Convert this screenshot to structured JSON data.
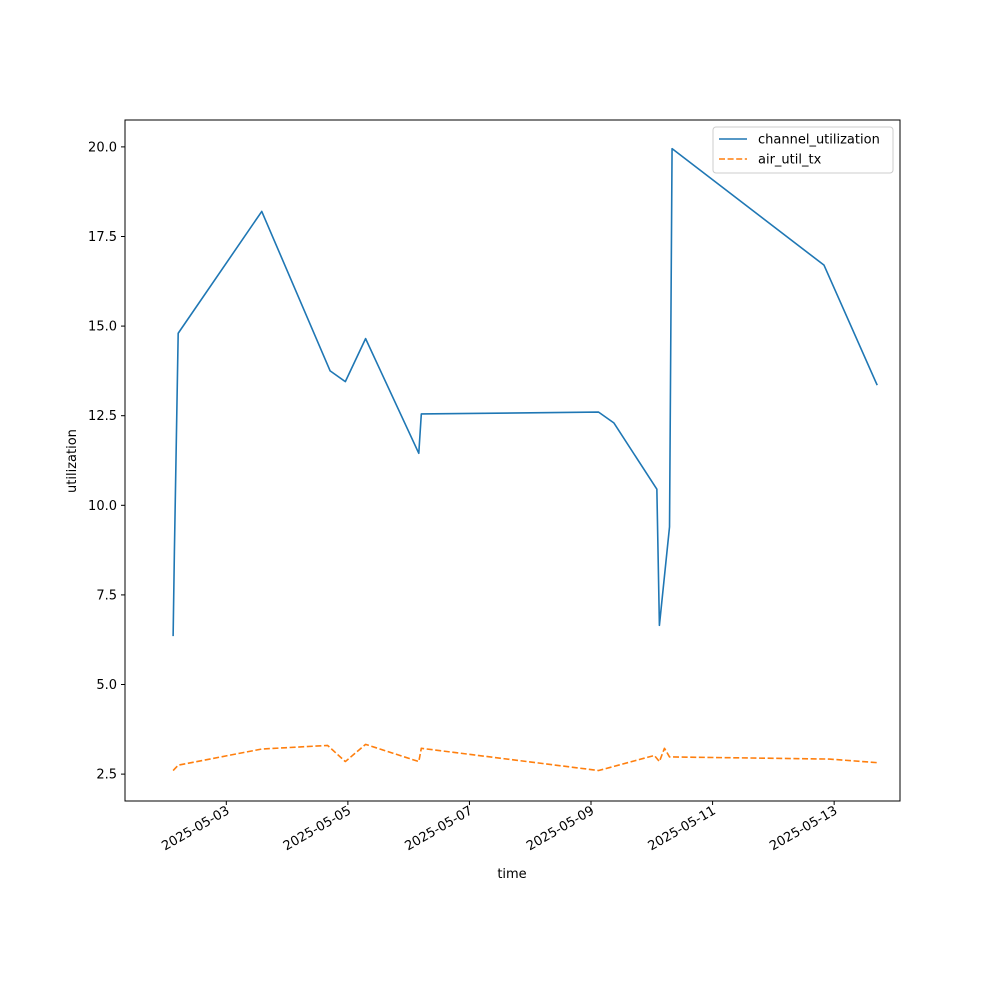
{
  "chart_data": {
    "type": "line",
    "title": "",
    "xlabel": "time",
    "ylabel": "utilization",
    "x_axis_type": "date",
    "xlim": [
      "2025-05-01T08:00",
      "2025-05-14T02:00"
    ],
    "ylim": [
      1.75,
      20.75
    ],
    "x_ticks": [
      "2025-05-03",
      "2025-05-05",
      "2025-05-07",
      "2025-05-09",
      "2025-05-11",
      "2025-05-13"
    ],
    "y_ticks": [
      2.5,
      5.0,
      7.5,
      10.0,
      12.5,
      15.0,
      17.5,
      20.0
    ],
    "y_tick_labels": [
      "2.5",
      "5.0",
      "7.5",
      "10.0",
      "12.5",
      "15.0",
      "17.5",
      "20.0"
    ],
    "grid": false,
    "legend_position": "upper right",
    "series": [
      {
        "name": "channel_utilization",
        "color": "#1f77b4",
        "dash": "solid",
        "points": [
          [
            "2025-05-02T03:00",
            6.35
          ],
          [
            "2025-05-02T03:30",
            8.7
          ],
          [
            "2025-05-02T05:00",
            14.8
          ],
          [
            "2025-05-03T14:00",
            18.2
          ],
          [
            "2025-05-04T17:00",
            13.75
          ],
          [
            "2025-05-04T23:00",
            13.45
          ],
          [
            "2025-05-05T07:00",
            14.65
          ],
          [
            "2025-05-06T04:00",
            11.45
          ],
          [
            "2025-05-06T05:00",
            12.55
          ],
          [
            "2025-05-09T03:00",
            12.6
          ],
          [
            "2025-05-09T09:00",
            12.3
          ],
          [
            "2025-05-10T02:00",
            10.45
          ],
          [
            "2025-05-10T03:00",
            6.65
          ],
          [
            "2025-05-10T07:00",
            9.4
          ],
          [
            "2025-05-10T08:00",
            19.95
          ],
          [
            "2025-05-12T20:00",
            16.7
          ],
          [
            "2025-05-13T17:00",
            13.35
          ]
        ]
      },
      {
        "name": "air_util_tx",
        "color": "#ff7f0e",
        "dash": "dashed",
        "points": [
          [
            "2025-05-02T03:00",
            2.6
          ],
          [
            "2025-05-02T05:00",
            2.75
          ],
          [
            "2025-05-03T14:00",
            3.2
          ],
          [
            "2025-05-04T16:00",
            3.3
          ],
          [
            "2025-05-04T23:00",
            2.85
          ],
          [
            "2025-05-05T07:00",
            3.33
          ],
          [
            "2025-05-06T04:00",
            2.85
          ],
          [
            "2025-05-06T05:00",
            3.22
          ],
          [
            "2025-05-09T03:00",
            2.6
          ],
          [
            "2025-05-10T01:00",
            3.02
          ],
          [
            "2025-05-10T03:00",
            2.85
          ],
          [
            "2025-05-10T05:00",
            3.22
          ],
          [
            "2025-05-10T07:00",
            2.98
          ],
          [
            "2025-05-12T22:00",
            2.92
          ],
          [
            "2025-05-13T17:00",
            2.82
          ]
        ]
      }
    ]
  }
}
